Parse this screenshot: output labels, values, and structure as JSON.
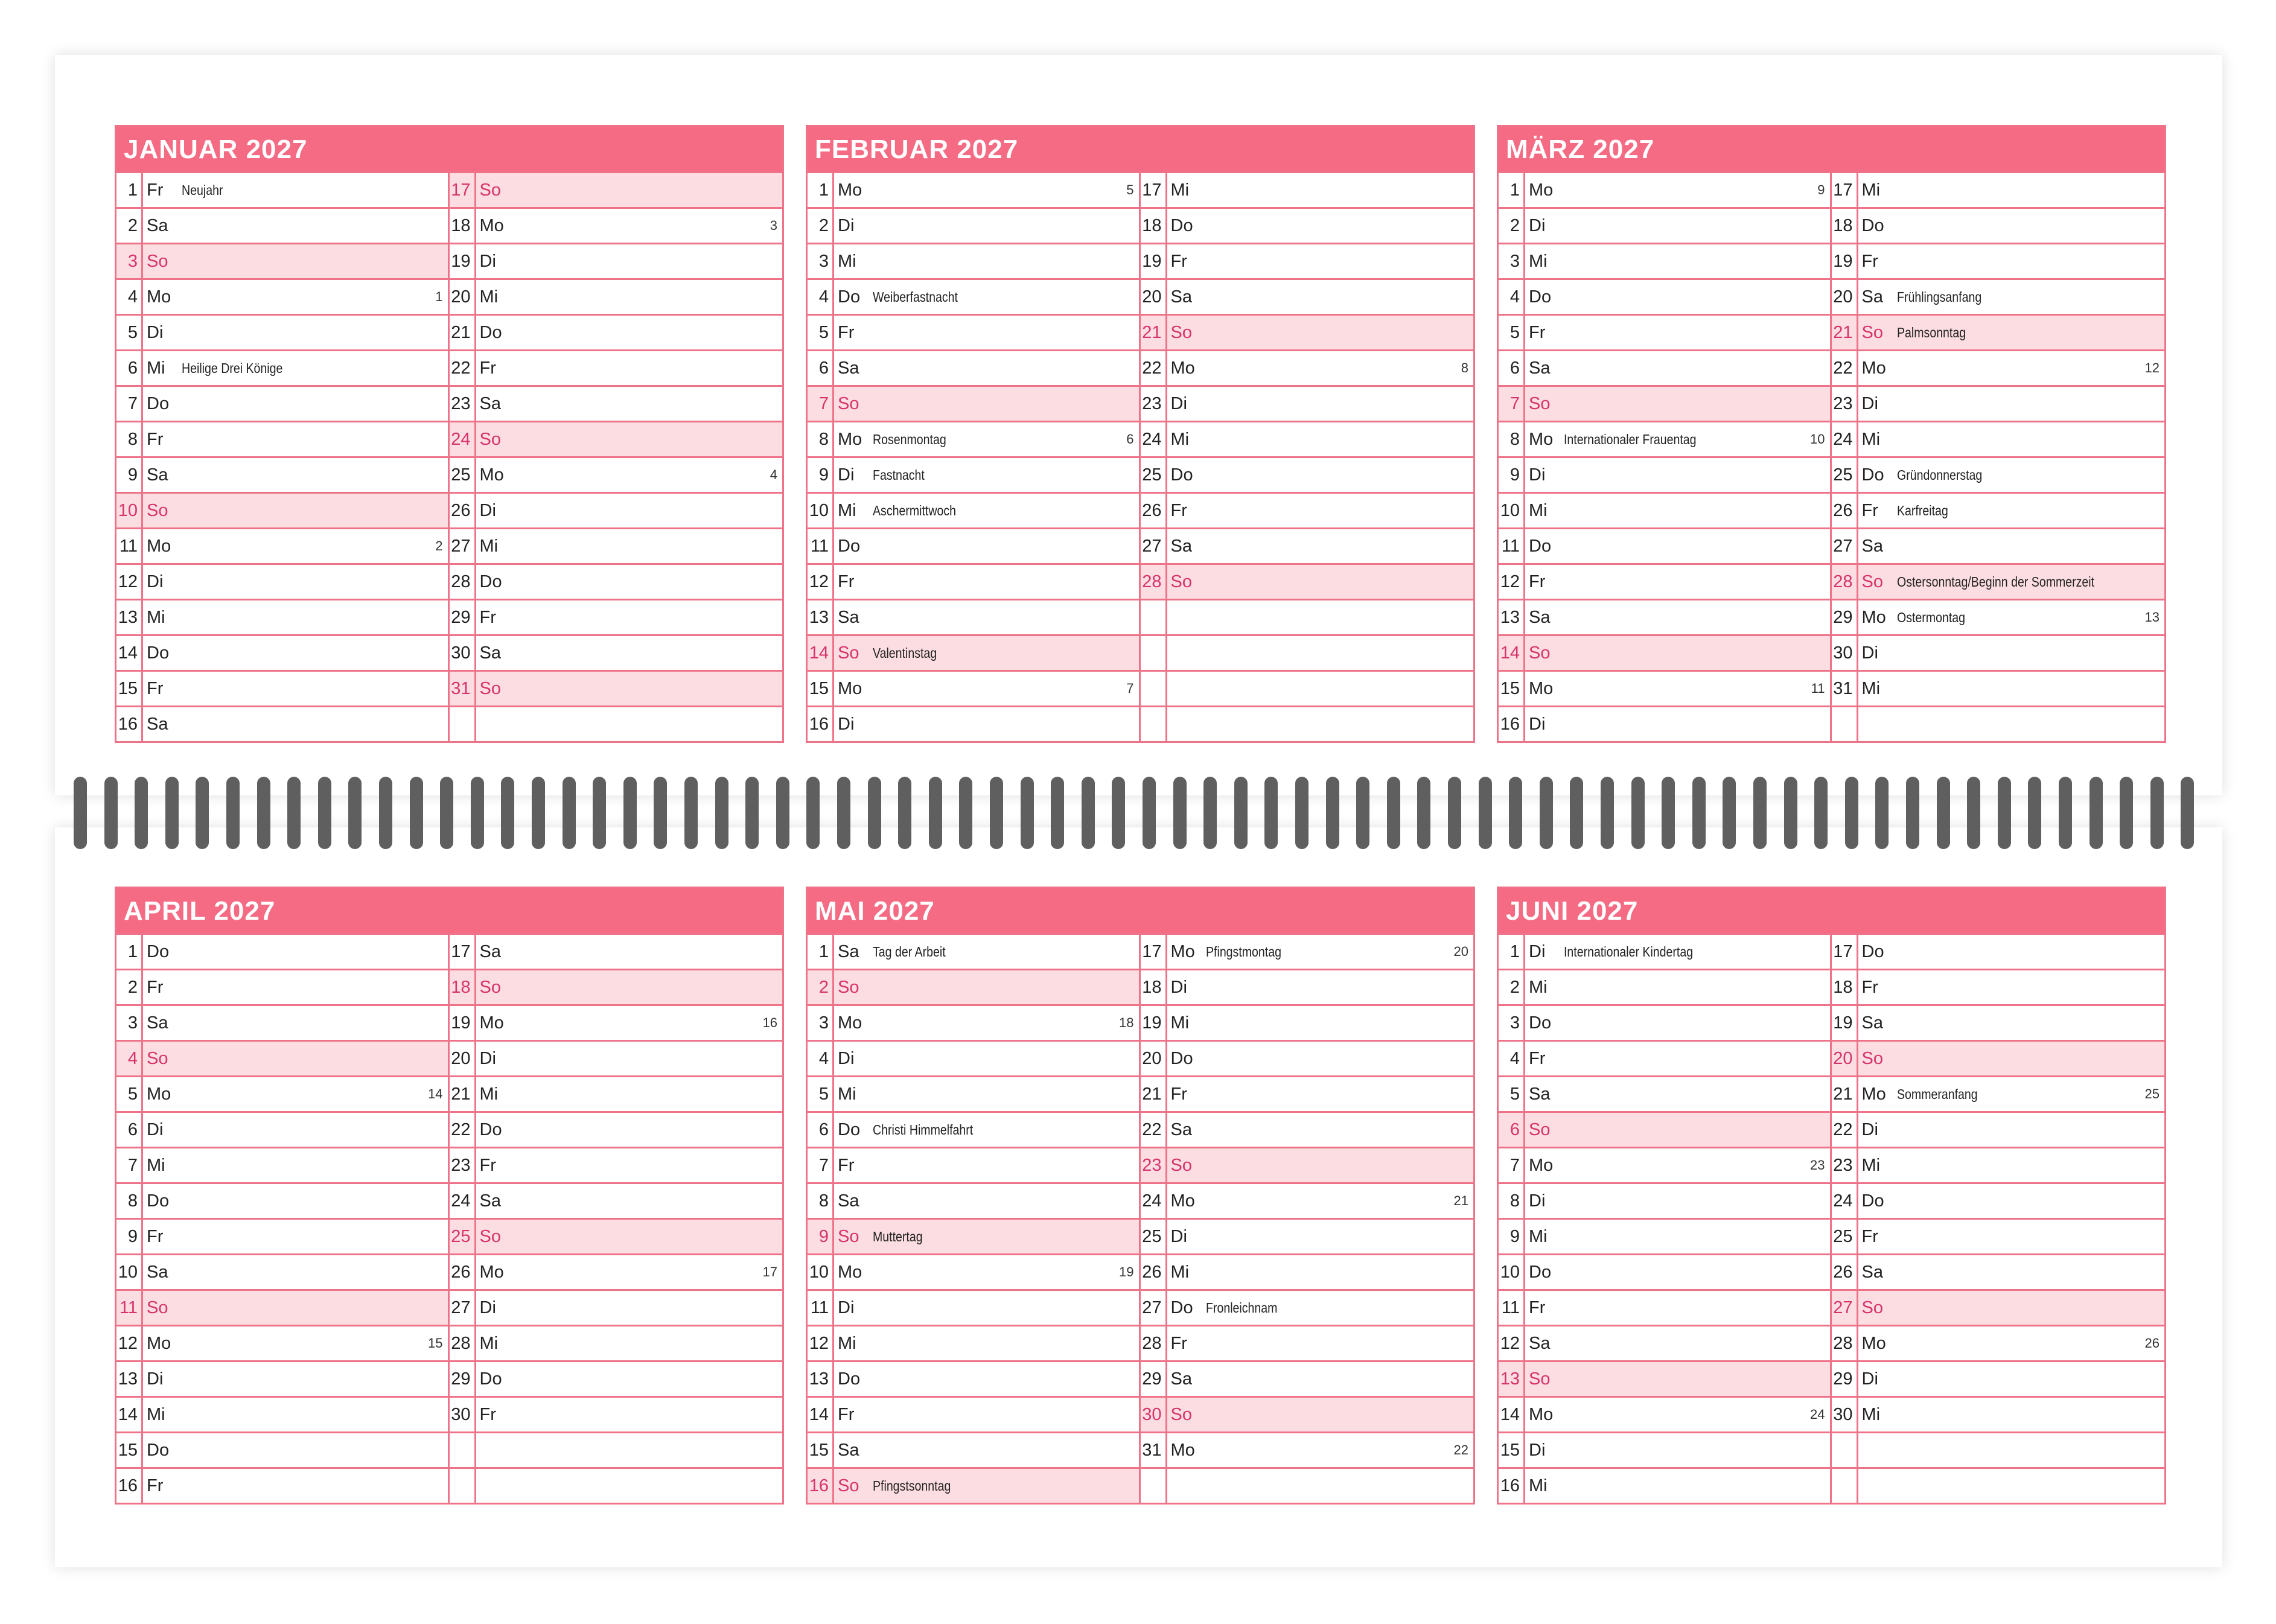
{
  "colors": {
    "header": "#f56b84",
    "grid": "#ee7389",
    "sunday_bg": "#fcdde1",
    "sunday_text": "#d6336c",
    "spiral": "#5f5f5f"
  },
  "months": [
    {
      "title": "JANUAR 2027",
      "days": [
        [
          1,
          "Fr",
          "Neujahr",
          ""
        ],
        [
          2,
          "Sa",
          "",
          ""
        ],
        [
          3,
          "So",
          "",
          ""
        ],
        [
          4,
          "Mo",
          "",
          "1"
        ],
        [
          5,
          "Di",
          "",
          ""
        ],
        [
          6,
          "Mi",
          "Heilige Drei Könige",
          ""
        ],
        [
          7,
          "Do",
          "",
          ""
        ],
        [
          8,
          "Fr",
          "",
          ""
        ],
        [
          9,
          "Sa",
          "",
          ""
        ],
        [
          10,
          "So",
          "",
          ""
        ],
        [
          11,
          "Mo",
          "",
          "2"
        ],
        [
          12,
          "Di",
          "",
          ""
        ],
        [
          13,
          "Mi",
          "",
          ""
        ],
        [
          14,
          "Do",
          "",
          ""
        ],
        [
          15,
          "Fr",
          "",
          ""
        ],
        [
          16,
          "Sa",
          "",
          ""
        ],
        [
          17,
          "So",
          "",
          ""
        ],
        [
          18,
          "Mo",
          "",
          "3"
        ],
        [
          19,
          "Di",
          "",
          ""
        ],
        [
          20,
          "Mi",
          "",
          ""
        ],
        [
          21,
          "Do",
          "",
          ""
        ],
        [
          22,
          "Fr",
          "",
          ""
        ],
        [
          23,
          "Sa",
          "",
          ""
        ],
        [
          24,
          "So",
          "",
          ""
        ],
        [
          25,
          "Mo",
          "",
          "4"
        ],
        [
          26,
          "Di",
          "",
          ""
        ],
        [
          27,
          "Mi",
          "",
          ""
        ],
        [
          28,
          "Do",
          "",
          ""
        ],
        [
          29,
          "Fr",
          "",
          ""
        ],
        [
          30,
          "Sa",
          "",
          ""
        ],
        [
          31,
          "So",
          "",
          ""
        ]
      ]
    },
    {
      "title": "FEBRUAR 2027",
      "days": [
        [
          1,
          "Mo",
          "",
          "5"
        ],
        [
          2,
          "Di",
          "",
          ""
        ],
        [
          3,
          "Mi",
          "",
          ""
        ],
        [
          4,
          "Do",
          "Weiberfastnacht",
          ""
        ],
        [
          5,
          "Fr",
          "",
          ""
        ],
        [
          6,
          "Sa",
          "",
          ""
        ],
        [
          7,
          "So",
          "",
          ""
        ],
        [
          8,
          "Mo",
          "Rosenmontag",
          "6"
        ],
        [
          9,
          "Di",
          "Fastnacht",
          ""
        ],
        [
          10,
          "Mi",
          "Aschermittwoch",
          ""
        ],
        [
          11,
          "Do",
          "",
          ""
        ],
        [
          12,
          "Fr",
          "",
          ""
        ],
        [
          13,
          "Sa",
          "",
          ""
        ],
        [
          14,
          "So",
          "Valentinstag",
          ""
        ],
        [
          15,
          "Mo",
          "",
          "7"
        ],
        [
          16,
          "Di",
          "",
          ""
        ],
        [
          17,
          "Mi",
          "",
          ""
        ],
        [
          18,
          "Do",
          "",
          ""
        ],
        [
          19,
          "Fr",
          "",
          ""
        ],
        [
          20,
          "Sa",
          "",
          ""
        ],
        [
          21,
          "So",
          "",
          ""
        ],
        [
          22,
          "Mo",
          "",
          "8"
        ],
        [
          23,
          "Di",
          "",
          ""
        ],
        [
          24,
          "Mi",
          "",
          ""
        ],
        [
          25,
          "Do",
          "",
          ""
        ],
        [
          26,
          "Fr",
          "",
          ""
        ],
        [
          27,
          "Sa",
          "",
          ""
        ],
        [
          28,
          "So",
          "",
          ""
        ]
      ]
    },
    {
      "title": "MÄRZ 2027",
      "days": [
        [
          1,
          "Mo",
          "",
          "9"
        ],
        [
          2,
          "Di",
          "",
          ""
        ],
        [
          3,
          "Mi",
          "",
          ""
        ],
        [
          4,
          "Do",
          "",
          ""
        ],
        [
          5,
          "Fr",
          "",
          ""
        ],
        [
          6,
          "Sa",
          "",
          ""
        ],
        [
          7,
          "So",
          "",
          ""
        ],
        [
          8,
          "Mo",
          "Internationaler Frauentag",
          "10"
        ],
        [
          9,
          "Di",
          "",
          ""
        ],
        [
          10,
          "Mi",
          "",
          ""
        ],
        [
          11,
          "Do",
          "",
          ""
        ],
        [
          12,
          "Fr",
          "",
          ""
        ],
        [
          13,
          "Sa",
          "",
          ""
        ],
        [
          14,
          "So",
          "",
          ""
        ],
        [
          15,
          "Mo",
          "",
          "11"
        ],
        [
          16,
          "Di",
          "",
          ""
        ],
        [
          17,
          "Mi",
          "",
          ""
        ],
        [
          18,
          "Do",
          "",
          ""
        ],
        [
          19,
          "Fr",
          "",
          ""
        ],
        [
          20,
          "Sa",
          "Frühlingsanfang",
          ""
        ],
        [
          21,
          "So",
          "Palmsonntag",
          ""
        ],
        [
          22,
          "Mo",
          "",
          "12"
        ],
        [
          23,
          "Di",
          "",
          ""
        ],
        [
          24,
          "Mi",
          "",
          ""
        ],
        [
          25,
          "Do",
          "Gründonnerstag",
          ""
        ],
        [
          26,
          "Fr",
          "Karfreitag",
          ""
        ],
        [
          27,
          "Sa",
          "",
          ""
        ],
        [
          28,
          "So",
          "Ostersonntag/Beginn der Sommerzeit",
          ""
        ],
        [
          29,
          "Mo",
          "Ostermontag",
          "13"
        ],
        [
          30,
          "Di",
          "",
          ""
        ],
        [
          31,
          "Mi",
          "",
          ""
        ]
      ]
    },
    {
      "title": "APRIL 2027",
      "days": [
        [
          1,
          "Do",
          "",
          ""
        ],
        [
          2,
          "Fr",
          "",
          ""
        ],
        [
          3,
          "Sa",
          "",
          ""
        ],
        [
          4,
          "So",
          "",
          ""
        ],
        [
          5,
          "Mo",
          "",
          "14"
        ],
        [
          6,
          "Di",
          "",
          ""
        ],
        [
          7,
          "Mi",
          "",
          ""
        ],
        [
          8,
          "Do",
          "",
          ""
        ],
        [
          9,
          "Fr",
          "",
          ""
        ],
        [
          10,
          "Sa",
          "",
          ""
        ],
        [
          11,
          "So",
          "",
          ""
        ],
        [
          12,
          "Mo",
          "",
          "15"
        ],
        [
          13,
          "Di",
          "",
          ""
        ],
        [
          14,
          "Mi",
          "",
          ""
        ],
        [
          15,
          "Do",
          "",
          ""
        ],
        [
          16,
          "Fr",
          "",
          ""
        ],
        [
          17,
          "Sa",
          "",
          ""
        ],
        [
          18,
          "So",
          "",
          ""
        ],
        [
          19,
          "Mo",
          "",
          "16"
        ],
        [
          20,
          "Di",
          "",
          ""
        ],
        [
          21,
          "Mi",
          "",
          ""
        ],
        [
          22,
          "Do",
          "",
          ""
        ],
        [
          23,
          "Fr",
          "",
          ""
        ],
        [
          24,
          "Sa",
          "",
          ""
        ],
        [
          25,
          "So",
          "",
          ""
        ],
        [
          26,
          "Mo",
          "",
          "17"
        ],
        [
          27,
          "Di",
          "",
          ""
        ],
        [
          28,
          "Mi",
          "",
          ""
        ],
        [
          29,
          "Do",
          "",
          ""
        ],
        [
          30,
          "Fr",
          "",
          ""
        ]
      ]
    },
    {
      "title": "MAI 2027",
      "days": [
        [
          1,
          "Sa",
          "Tag der Arbeit",
          ""
        ],
        [
          2,
          "So",
          "",
          ""
        ],
        [
          3,
          "Mo",
          "",
          "18"
        ],
        [
          4,
          "Di",
          "",
          ""
        ],
        [
          5,
          "Mi",
          "",
          ""
        ],
        [
          6,
          "Do",
          "Christi Himmelfahrt",
          ""
        ],
        [
          7,
          "Fr",
          "",
          ""
        ],
        [
          8,
          "Sa",
          "",
          ""
        ],
        [
          9,
          "So",
          "Muttertag",
          ""
        ],
        [
          10,
          "Mo",
          "",
          "19"
        ],
        [
          11,
          "Di",
          "",
          ""
        ],
        [
          12,
          "Mi",
          "",
          ""
        ],
        [
          13,
          "Do",
          "",
          ""
        ],
        [
          14,
          "Fr",
          "",
          ""
        ],
        [
          15,
          "Sa",
          "",
          ""
        ],
        [
          16,
          "So",
          "Pfingstsonntag",
          ""
        ],
        [
          17,
          "Mo",
          "Pfingstmontag",
          "20"
        ],
        [
          18,
          "Di",
          "",
          ""
        ],
        [
          19,
          "Mi",
          "",
          ""
        ],
        [
          20,
          "Do",
          "",
          ""
        ],
        [
          21,
          "Fr",
          "",
          ""
        ],
        [
          22,
          "Sa",
          "",
          ""
        ],
        [
          23,
          "So",
          "",
          ""
        ],
        [
          24,
          "Mo",
          "",
          "21"
        ],
        [
          25,
          "Di",
          "",
          ""
        ],
        [
          26,
          "Mi",
          "",
          ""
        ],
        [
          27,
          "Do",
          "Fronleichnam",
          ""
        ],
        [
          28,
          "Fr",
          "",
          ""
        ],
        [
          29,
          "Sa",
          "",
          ""
        ],
        [
          30,
          "So",
          "",
          ""
        ],
        [
          31,
          "Mo",
          "",
          "22"
        ]
      ]
    },
    {
      "title": "JUNI 2027",
      "days": [
        [
          1,
          "Di",
          "Internationaler Kindertag",
          ""
        ],
        [
          2,
          "Mi",
          "",
          ""
        ],
        [
          3,
          "Do",
          "",
          ""
        ],
        [
          4,
          "Fr",
          "",
          ""
        ],
        [
          5,
          "Sa",
          "",
          ""
        ],
        [
          6,
          "So",
          "",
          ""
        ],
        [
          7,
          "Mo",
          "",
          "23"
        ],
        [
          8,
          "Di",
          "",
          ""
        ],
        [
          9,
          "Mi",
          "",
          ""
        ],
        [
          10,
          "Do",
          "",
          ""
        ],
        [
          11,
          "Fr",
          "",
          ""
        ],
        [
          12,
          "Sa",
          "",
          ""
        ],
        [
          13,
          "So",
          "",
          ""
        ],
        [
          14,
          "Mo",
          "",
          "24"
        ],
        [
          15,
          "Di",
          "",
          ""
        ],
        [
          16,
          "Mi",
          "",
          ""
        ],
        [
          17,
          "Do",
          "",
          ""
        ],
        [
          18,
          "Fr",
          "",
          ""
        ],
        [
          19,
          "Sa",
          "",
          ""
        ],
        [
          20,
          "So",
          "",
          ""
        ],
        [
          21,
          "Mo",
          "Sommeranfang",
          "25"
        ],
        [
          22,
          "Di",
          "",
          ""
        ],
        [
          23,
          "Mi",
          "",
          ""
        ],
        [
          24,
          "Do",
          "",
          ""
        ],
        [
          25,
          "Fr",
          "",
          ""
        ],
        [
          26,
          "Sa",
          "",
          ""
        ],
        [
          27,
          "So",
          "",
          ""
        ],
        [
          28,
          "Mo",
          "",
          "26"
        ],
        [
          29,
          "Di",
          "",
          ""
        ],
        [
          30,
          "Mi",
          "",
          ""
        ]
      ]
    }
  ]
}
